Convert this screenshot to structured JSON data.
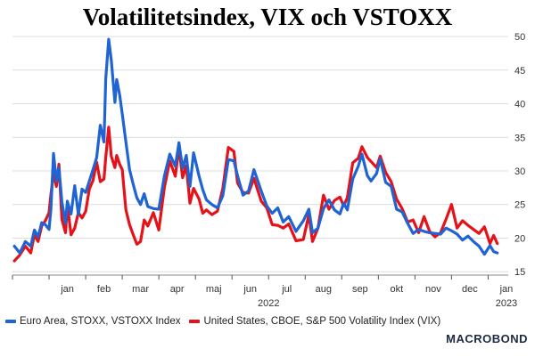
{
  "chart_data": {
    "type": "line",
    "title": "Volatilitetsindex, VIX och VSTOXX",
    "xlabel": "2022",
    "ylabel": "",
    "ylim": [
      14.5,
      50.8
    ],
    "yticks": [
      15,
      20,
      25,
      30,
      35,
      40,
      45,
      50
    ],
    "xticks": [
      "jan",
      "feb",
      "mar",
      "apr",
      "maj",
      "jun",
      "jul",
      "aug",
      "sep",
      "okt",
      "nov",
      "dec",
      "jan"
    ],
    "year_labels": [
      "2022",
      "2023"
    ],
    "grid": "horizontal",
    "legend_position": "bottom",
    "x_unit": "month index from start of December 2021",
    "series": [
      {
        "name": "Euro Area, STOXX, VSTOXX Index",
        "color": "#1f64d2",
        "points": [
          [
            0.05,
            18.8
          ],
          [
            0.2,
            17.8
          ],
          [
            0.35,
            19.5
          ],
          [
            0.5,
            18.8
          ],
          [
            0.6,
            21.2
          ],
          [
            0.7,
            20.2
          ],
          [
            0.8,
            22.3
          ],
          [
            0.9,
            22.0
          ],
          [
            1.0,
            21.3
          ],
          [
            1.05,
            24.3
          ],
          [
            1.12,
            32.6
          ],
          [
            1.2,
            28.5
          ],
          [
            1.27,
            30.5
          ],
          [
            1.35,
            25.4
          ],
          [
            1.45,
            22.2
          ],
          [
            1.5,
            25.5
          ],
          [
            1.6,
            23.6
          ],
          [
            1.7,
            27.8
          ],
          [
            1.8,
            23.5
          ],
          [
            1.9,
            27.3
          ],
          [
            2.0,
            26.8
          ],
          [
            2.1,
            28.5
          ],
          [
            2.2,
            30.2
          ],
          [
            2.3,
            32.0
          ],
          [
            2.4,
            36.8
          ],
          [
            2.5,
            34.3
          ],
          [
            2.55,
            43.7
          ],
          [
            2.63,
            49.6
          ],
          [
            2.7,
            46.5
          ],
          [
            2.8,
            40.2
          ],
          [
            2.85,
            43.6
          ],
          [
            2.93,
            41.3
          ],
          [
            3.0,
            38.5
          ],
          [
            3.1,
            34.3
          ],
          [
            3.2,
            30.2
          ],
          [
            3.3,
            28.0
          ],
          [
            3.4,
            26.0
          ],
          [
            3.5,
            25.0
          ],
          [
            3.6,
            26.6
          ],
          [
            3.7,
            24.7
          ],
          [
            3.85,
            24.4
          ],
          [
            4.0,
            24.3
          ],
          [
            4.15,
            29.2
          ],
          [
            4.3,
            32.5
          ],
          [
            4.45,
            30.7
          ],
          [
            4.55,
            34.2
          ],
          [
            4.65,
            30.4
          ],
          [
            4.75,
            32.3
          ],
          [
            4.85,
            27.7
          ],
          [
            4.95,
            32.7
          ],
          [
            5.1,
            29.2
          ],
          [
            5.2,
            27.2
          ],
          [
            5.3,
            25.7
          ],
          [
            5.45,
            25.0
          ],
          [
            5.6,
            24.5
          ],
          [
            5.75,
            26.3
          ],
          [
            5.9,
            31.7
          ],
          [
            6.05,
            31.5
          ],
          [
            6.15,
            29.3
          ],
          [
            6.3,
            26.4
          ],
          [
            6.45,
            27.0
          ],
          [
            6.6,
            30.2
          ],
          [
            6.8,
            27.0
          ],
          [
            6.95,
            24.8
          ],
          [
            7.1,
            23.7
          ],
          [
            7.25,
            24.5
          ],
          [
            7.4,
            22.4
          ],
          [
            7.55,
            23.2
          ],
          [
            7.75,
            21.0
          ],
          [
            7.95,
            22.6
          ],
          [
            8.1,
            24.3
          ],
          [
            8.2,
            20.8
          ],
          [
            8.35,
            21.5
          ],
          [
            8.5,
            24.4
          ],
          [
            8.65,
            25.7
          ],
          [
            8.8,
            24.2
          ],
          [
            8.95,
            23.6
          ],
          [
            9.05,
            25.2
          ],
          [
            9.15,
            24.2
          ],
          [
            9.3,
            28.8
          ],
          [
            9.45,
            30.7
          ],
          [
            9.55,
            32.5
          ],
          [
            9.7,
            29.3
          ],
          [
            9.8,
            28.5
          ],
          [
            9.95,
            29.6
          ],
          [
            10.05,
            31.8
          ],
          [
            10.2,
            28.3
          ],
          [
            10.35,
            27.7
          ],
          [
            10.5,
            24.3
          ],
          [
            10.65,
            23.9
          ],
          [
            10.8,
            22.2
          ],
          [
            10.95,
            20.7
          ],
          [
            11.1,
            21.3
          ],
          [
            11.25,
            21.0
          ],
          [
            11.4,
            20.8
          ],
          [
            11.55,
            20.7
          ],
          [
            11.7,
            20.6
          ],
          [
            11.85,
            21.5
          ],
          [
            12.0,
            21.1
          ],
          [
            12.15,
            20.6
          ],
          [
            12.3,
            19.7
          ],
          [
            12.45,
            20.3
          ],
          [
            12.6,
            19.5
          ],
          [
            12.75,
            18.8
          ],
          [
            12.9,
            17.6
          ],
          [
            13.05,
            18.9
          ],
          [
            13.15,
            18.0
          ],
          [
            13.25,
            17.8
          ]
        ]
      },
      {
        "name": "United States, CBOE, S&P 500 Volatility Index (VIX)",
        "color": "#e6121a",
        "points": [
          [
            0.05,
            16.6
          ],
          [
            0.2,
            17.5
          ],
          [
            0.35,
            18.8
          ],
          [
            0.5,
            17.8
          ],
          [
            0.6,
            20.5
          ],
          [
            0.7,
            19.5
          ],
          [
            0.8,
            21.8
          ],
          [
            0.9,
            22.6
          ],
          [
            1.0,
            23.8
          ],
          [
            1.05,
            26.5
          ],
          [
            1.12,
            29.7
          ],
          [
            1.2,
            27.7
          ],
          [
            1.27,
            31.0
          ],
          [
            1.35,
            22.8
          ],
          [
            1.45,
            20.8
          ],
          [
            1.5,
            25.0
          ],
          [
            1.6,
            20.5
          ],
          [
            1.7,
            21.5
          ],
          [
            1.8,
            23.8
          ],
          [
            1.9,
            23.0
          ],
          [
            2.0,
            24.0
          ],
          [
            2.1,
            27.3
          ],
          [
            2.2,
            28.6
          ],
          [
            2.3,
            31.3
          ],
          [
            2.4,
            28.4
          ],
          [
            2.5,
            28.8
          ],
          [
            2.55,
            32.0
          ],
          [
            2.63,
            36.5
          ],
          [
            2.7,
            32.2
          ],
          [
            2.8,
            30.5
          ],
          [
            2.85,
            32.3
          ],
          [
            2.93,
            31.0
          ],
          [
            3.0,
            30.2
          ],
          [
            3.1,
            24.2
          ],
          [
            3.2,
            22.0
          ],
          [
            3.3,
            20.5
          ],
          [
            3.4,
            19.1
          ],
          [
            3.5,
            19.5
          ],
          [
            3.6,
            22.7
          ],
          [
            3.7,
            21.8
          ],
          [
            3.85,
            23.8
          ],
          [
            4.0,
            21.2
          ],
          [
            4.15,
            27.5
          ],
          [
            4.3,
            31.5
          ],
          [
            4.45,
            29.2
          ],
          [
            4.55,
            33.5
          ],
          [
            4.65,
            29.0
          ],
          [
            4.75,
            30.8
          ],
          [
            4.85,
            25.2
          ],
          [
            4.95,
            27.4
          ],
          [
            5.1,
            25.8
          ],
          [
            5.2,
            23.7
          ],
          [
            5.3,
            24.2
          ],
          [
            5.45,
            23.5
          ],
          [
            5.6,
            24.0
          ],
          [
            5.75,
            27.4
          ],
          [
            5.9,
            33.5
          ],
          [
            6.05,
            32.9
          ],
          [
            6.15,
            28.2
          ],
          [
            6.3,
            26.8
          ],
          [
            6.45,
            26.7
          ],
          [
            6.6,
            28.9
          ],
          [
            6.8,
            25.5
          ],
          [
            6.95,
            24.5
          ],
          [
            7.1,
            22.0
          ],
          [
            7.25,
            21.9
          ],
          [
            7.4,
            21.5
          ],
          [
            7.55,
            22.1
          ],
          [
            7.75,
            19.6
          ],
          [
            7.95,
            19.8
          ],
          [
            8.1,
            23.5
          ],
          [
            8.2,
            19.5
          ],
          [
            8.35,
            21.5
          ],
          [
            8.5,
            26.4
          ],
          [
            8.65,
            24.3
          ],
          [
            8.8,
            25.6
          ],
          [
            8.95,
            26.1
          ],
          [
            9.05,
            24.8
          ],
          [
            9.15,
            26.0
          ],
          [
            9.3,
            31.2
          ],
          [
            9.45,
            31.9
          ],
          [
            9.55,
            33.6
          ],
          [
            9.7,
            32.0
          ],
          [
            9.8,
            31.4
          ],
          [
            9.95,
            30.5
          ],
          [
            10.05,
            32.2
          ],
          [
            10.2,
            29.8
          ],
          [
            10.35,
            28.4
          ],
          [
            10.5,
            25.8
          ],
          [
            10.65,
            24.4
          ],
          [
            10.8,
            22.4
          ],
          [
            10.95,
            22.7
          ],
          [
            11.1,
            20.8
          ],
          [
            11.25,
            23.2
          ],
          [
            11.4,
            21.0
          ],
          [
            11.55,
            20.2
          ],
          [
            11.7,
            20.8
          ],
          [
            11.85,
            22.8
          ],
          [
            12.0,
            25.0
          ],
          [
            12.15,
            21.5
          ],
          [
            12.3,
            22.6
          ],
          [
            12.45,
            21.9
          ],
          [
            12.6,
            21.3
          ],
          [
            12.75,
            20.7
          ],
          [
            12.9,
            21.7
          ],
          [
            13.05,
            19.2
          ],
          [
            13.15,
            20.4
          ],
          [
            13.25,
            19.2
          ]
        ]
      }
    ]
  },
  "legend": {
    "items": [
      {
        "label": "Euro Area, STOXX, VSTOXX Index",
        "color": "#1f64d2"
      },
      {
        "label": "United States, CBOE, S&P 500 Volatility Index (VIX)",
        "color": "#e6121a"
      }
    ]
  },
  "branding": {
    "logo_text": "MACROBOND"
  }
}
